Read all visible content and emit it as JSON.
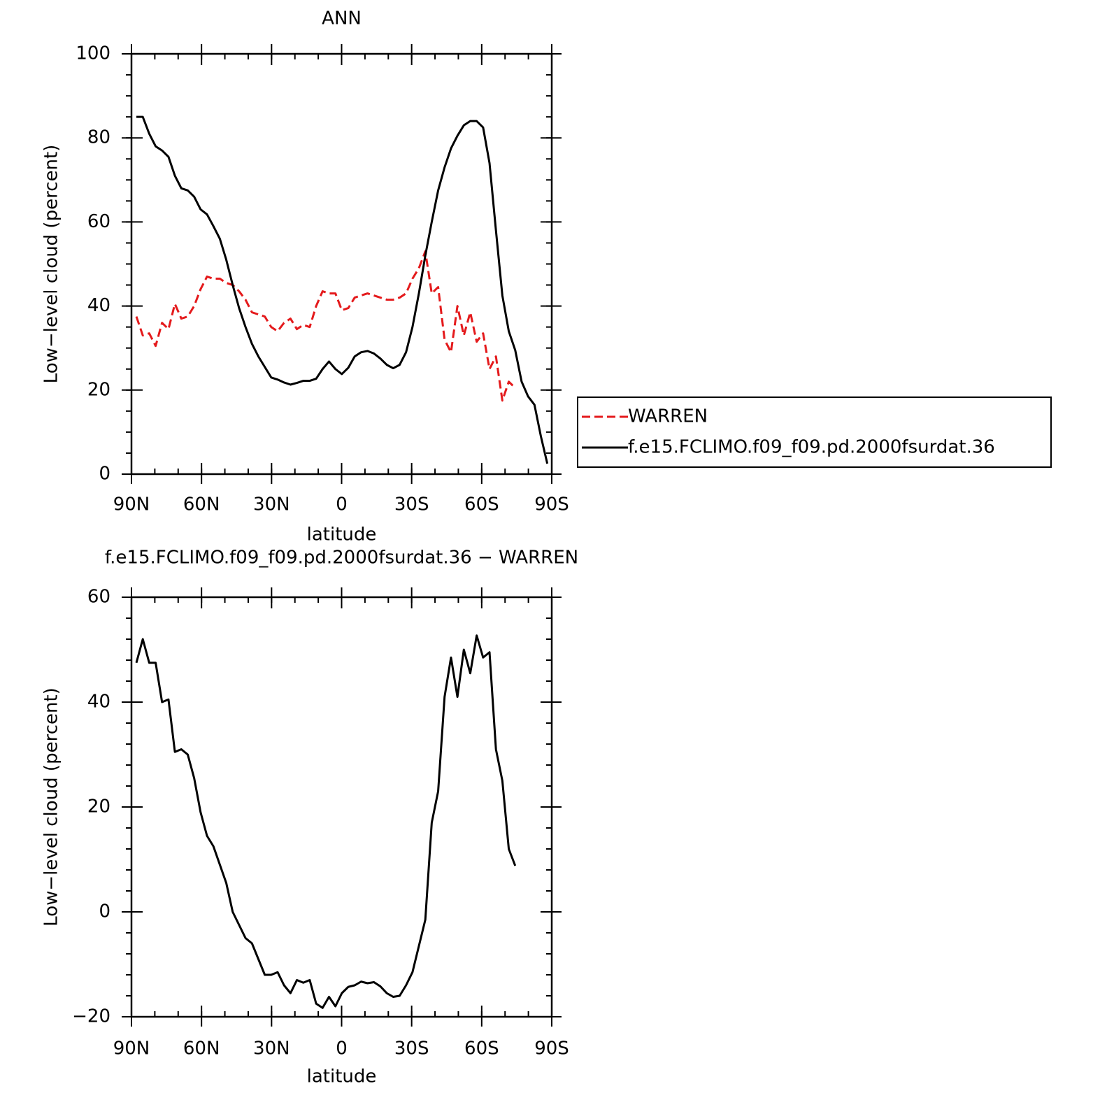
{
  "chart_data": [
    {
      "type": "line",
      "title": "ANN",
      "xlabel": "latitude",
      "ylabel": "Low−level cloud (percent)",
      "xlim": [
        90,
        -90
      ],
      "ylim": [
        0,
        100
      ],
      "xticks": [
        {
          "value": 90,
          "label": "90N"
        },
        {
          "value": 60,
          "label": "60N"
        },
        {
          "value": 30,
          "label": "30N"
        },
        0,
        {
          "value": -30,
          "label": "30S"
        },
        {
          "value": -60,
          "label": "60S"
        },
        {
          "value": -90,
          "label": "90S"
        }
      ],
      "yticks": [
        0,
        20,
        40,
        60,
        80,
        100
      ],
      "legend": "outside-right",
      "x": [
        87.9,
        85.15,
        82.4,
        79.65,
        76.9,
        74.15,
        71.4,
        68.65,
        65.9,
        63.15,
        60.4,
        57.65,
        54.9,
        52.15,
        49.4,
        46.65,
        43.9,
        41.15,
        38.4,
        35.65,
        32.9,
        30.15,
        27.4,
        24.65,
        21.9,
        19.15,
        16.4,
        13.65,
        10.9,
        8.15,
        5.4,
        2.65,
        -0.1,
        -2.85,
        -5.6,
        -8.35,
        -11.1,
        -13.85,
        -16.6,
        -19.35,
        -22.1,
        -24.85,
        -27.6,
        -30.35,
        -33.1,
        -35.85,
        -38.6,
        -41.35,
        -44.1,
        -46.85,
        -49.6,
        -52.35,
        -55.1,
        -57.85,
        -60.6,
        -63.35,
        -66.1,
        -68.85,
        -71.6,
        -74.35,
        -77.1,
        -79.85,
        -82.6,
        -85.35,
        -88.1
      ],
      "series": [
        {
          "name": "WARREN",
          "color": "#e41a1c",
          "dash": true,
          "values": [
            37.5,
            33,
            33.5,
            30.5,
            36,
            34.5,
            40.5,
            37,
            37.5,
            40,
            44,
            47,
            46.5,
            46.5,
            45.5,
            45,
            43.5,
            41.5,
            38.5,
            38,
            37.5,
            35,
            34,
            36,
            37,
            34.5,
            35.5,
            35,
            40,
            43.5,
            43,
            43,
            39,
            39.5,
            42,
            42.5,
            43,
            42.5,
            42,
            41.5,
            41.5,
            42,
            43,
            46.5,
            49,
            53,
            43,
            44.5,
            32,
            29,
            40,
            33,
            38.5,
            31.5,
            33.5,
            25,
            28,
            17.5,
            22,
            20.5,
            null,
            null,
            null,
            null,
            null
          ]
        },
        {
          "name": "f.e15.FCLIMO.f09_f09.pd.2000fsurdat.36",
          "color": "#000000",
          "dash": false,
          "values": [
            85,
            85,
            81,
            78,
            77,
            75.5,
            71,
            68,
            67.5,
            66,
            63,
            61.8,
            59,
            56,
            51,
            45,
            39.5,
            35,
            31,
            28,
            25.5,
            23,
            22.5,
            21.8,
            21.3,
            21.7,
            22.2,
            22.2,
            22.7,
            25,
            26.8,
            25,
            23.8,
            25.3,
            28,
            29,
            29.3,
            28.7,
            27.5,
            26,
            25.2,
            26,
            29,
            35,
            43,
            52,
            60,
            67.5,
            73,
            77.5,
            80.5,
            83,
            84,
            84,
            82.5,
            74,
            58,
            42.5,
            34,
            29.5,
            22,
            18.5,
            16.5,
            9,
            2.5
          ]
        }
      ]
    },
    {
      "type": "line",
      "title": "f.e15.FCLIMO.f09_f09.pd.2000fsurdat.36 − WARREN",
      "xlabel": "latitude",
      "ylabel": "Low−level cloud (percent)",
      "xlim": [
        90,
        -90
      ],
      "ylim": [
        -20,
        60
      ],
      "xticks": [
        {
          "value": 90,
          "label": "90N"
        },
        {
          "value": 60,
          "label": "60N"
        },
        {
          "value": 30,
          "label": "30N"
        },
        0,
        {
          "value": -30,
          "label": "30S"
        },
        {
          "value": -60,
          "label": "60S"
        },
        {
          "value": -90,
          "label": "90S"
        }
      ],
      "yticks": [
        {
          "value": -20,
          "label": "−20"
        },
        0,
        20,
        40,
        60
      ],
      "x": [
        87.9,
        85.15,
        82.4,
        79.65,
        76.9,
        74.15,
        71.4,
        68.65,
        65.9,
        63.15,
        60.4,
        57.65,
        54.9,
        52.15,
        49.4,
        46.65,
        43.9,
        41.15,
        38.4,
        35.65,
        32.9,
        30.15,
        27.4,
        24.65,
        21.9,
        19.15,
        16.4,
        13.65,
        10.9,
        8.15,
        5.4,
        2.65,
        -0.1,
        -2.85,
        -5.6,
        -8.35,
        -11.1,
        -13.85,
        -16.6,
        -19.35,
        -22.1,
        -24.85,
        -27.6,
        -30.35,
        -33.1,
        -35.85,
        -38.6,
        -41.35,
        -44.1,
        -46.85,
        -49.6,
        -52.35,
        -55.1,
        -57.85,
        -60.6,
        -63.35,
        -66.1,
        -68.85,
        -71.6,
        -74.35
      ],
      "series": [
        {
          "color": "#000000",
          "dash": false,
          "values": [
            47.5,
            52,
            47.5,
            47.5,
            40,
            40.5,
            30.5,
            31,
            30,
            25.5,
            19,
            14.5,
            12.5,
            9,
            5.5,
            0,
            -2.5,
            -5,
            -6,
            -9,
            -12,
            -12,
            -11.5,
            -14,
            -15.5,
            -13,
            -13.5,
            -13,
            -17.5,
            -18.3,
            -16.2,
            -18,
            -15.5,
            -14.3,
            -14,
            -13.3,
            -13.6,
            -13.4,
            -14.2,
            -15.5,
            -16.2,
            -16,
            -14,
            -11.5,
            -6.5,
            -1.5,
            17,
            23,
            41,
            48.5,
            41,
            50,
            45.5,
            52.7,
            48.5,
            49.5,
            31,
            25,
            12,
            8.8
          ]
        }
      ]
    }
  ]
}
